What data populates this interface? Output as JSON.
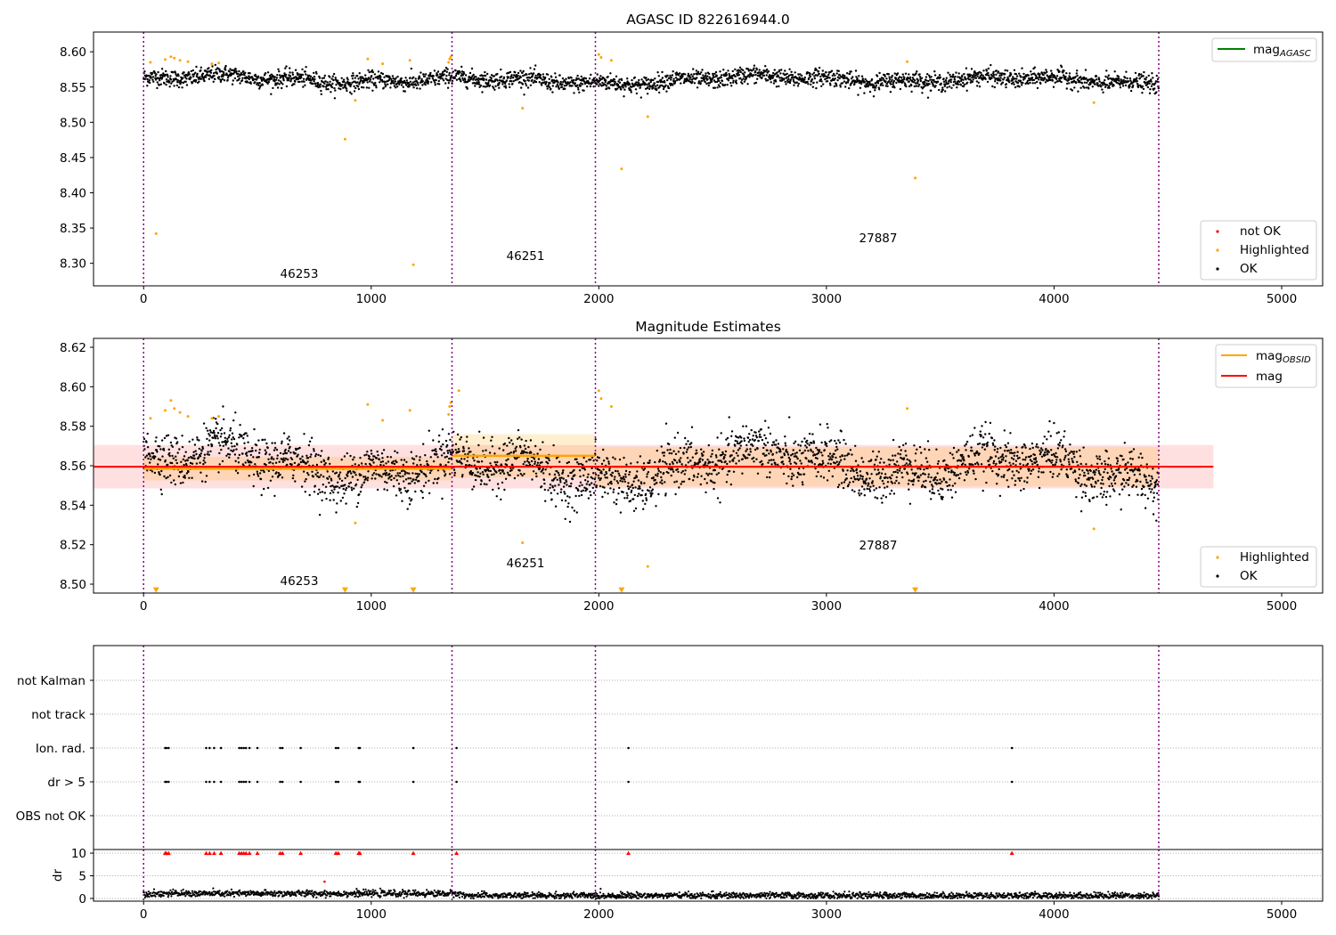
{
  "chart_data": [
    {
      "type": "scatter",
      "title": "AGASC ID 822616944.0",
      "xlim": [
        -220,
        5180
      ],
      "ylim": [
        8.268,
        8.628
      ],
      "x_ticks": [
        0,
        1000,
        2000,
        3000,
        4000,
        5000
      ],
      "y_ticks": [
        8.3,
        8.35,
        8.4,
        8.45,
        8.5,
        8.55,
        8.6
      ],
      "y_tick_labels": [
        "8.30",
        "8.35",
        "8.40",
        "8.45",
        "8.50",
        "8.55",
        "8.60"
      ],
      "obs_boundaries": [
        0,
        1355,
        1985,
        4460
      ],
      "obs_labels": [
        {
          "text": "46253",
          "x": 675,
          "y": 8.283
        },
        {
          "text": "46251",
          "x": 1670,
          "y": 8.309
        },
        {
          "text": "27887",
          "x": 3225,
          "y": 8.334
        }
      ],
      "series": [
        {
          "name": "OK",
          "color": "#000000",
          "band_mean": 8.56,
          "band_sd": 0.008,
          "x_range": [
            0,
            4460
          ]
        },
        {
          "name": "Highlighted",
          "color": "#ffa500",
          "values": [
            [
              55,
              8.342
            ],
            [
              885,
              8.476
            ],
            [
              930,
              8.531
            ],
            [
              1185,
              8.298
            ],
            [
              1665,
              8.52
            ],
            [
              2100,
              8.434
            ],
            [
              2215,
              8.508
            ],
            [
              3390,
              8.421
            ],
            [
              4175,
              8.528
            ],
            [
              30,
              8.585
            ],
            [
              95,
              8.589
            ],
            [
              120,
              8.593
            ],
            [
              135,
              8.591
            ],
            [
              160,
              8.588
            ],
            [
              195,
              8.586
            ],
            [
              300,
              8.583
            ],
            [
              330,
              8.584
            ],
            [
              985,
              8.59
            ],
            [
              1050,
              8.583
            ],
            [
              1170,
              8.588
            ],
            [
              1340,
              8.585
            ],
            [
              1345,
              8.59
            ],
            [
              1350,
              8.593
            ],
            [
              2000,
              8.596
            ],
            [
              2010,
              8.592
            ],
            [
              2055,
              8.588
            ],
            [
              3355,
              8.586
            ]
          ]
        },
        {
          "name": "not OK",
          "color": "#ff0000",
          "values": []
        }
      ],
      "line_series": [
        {
          "name": "mag_AGASC",
          "color": "#008000",
          "values": []
        }
      ],
      "legends": [
        {
          "position": "top-right",
          "entries": [
            {
              "label": "mag",
              "subscript": "AGASC",
              "kind": "line",
              "color": "#008000"
            }
          ]
        },
        {
          "position": "bottom-right",
          "entries": [
            {
              "label": "not OK",
              "kind": "dot",
              "color": "#ff0000"
            },
            {
              "label": "Highlighted",
              "kind": "dot",
              "color": "#ffa500"
            },
            {
              "label": "OK",
              "kind": "dot",
              "color": "#000000"
            }
          ]
        }
      ]
    },
    {
      "type": "scatter",
      "title": "Magnitude Estimates",
      "xlim": [
        -220,
        5180
      ],
      "ylim": [
        8.4955,
        8.6245
      ],
      "x_ticks": [
        0,
        1000,
        2000,
        3000,
        4000,
        5000
      ],
      "y_ticks": [
        8.5,
        8.52,
        8.54,
        8.56,
        8.58,
        8.6,
        8.62
      ],
      "y_tick_labels": [
        "8.50",
        "8.52",
        "8.54",
        "8.56",
        "8.58",
        "8.60",
        "8.62"
      ],
      "obs_boundaries": [
        0,
        1355,
        1985,
        4460
      ],
      "obs_labels": [
        {
          "text": "46253",
          "x": 675,
          "y": 8.4995
        },
        {
          "text": "46251",
          "x": 1670,
          "y": 8.5085
        },
        {
          "text": "27887",
          "x": 3225,
          "y": 8.5175
        }
      ],
      "mag": {
        "value": 8.5595,
        "sd": 0.011,
        "x_range": [
          -220,
          4700
        ],
        "color": "#ff0000"
      },
      "mag_obsid": [
        {
          "obsid": "46253",
          "value": 8.5585,
          "sd": 0.006,
          "x_range": [
            0,
            1355
          ]
        },
        {
          "obsid": "46251",
          "value": 8.565,
          "sd": 0.011,
          "x_range": [
            1355,
            1985
          ]
        },
        {
          "obsid": "27887",
          "value": 8.5595,
          "sd": 0.01,
          "x_range": [
            1985,
            4460
          ]
        }
      ],
      "series": [
        {
          "name": "OK",
          "color": "#000000",
          "band_mean": 8.5595,
          "band_sd": 0.0075,
          "x_range": [
            0,
            4460
          ]
        },
        {
          "name": "Highlighted",
          "color": "#ffa500",
          "values": [
            [
              30,
              8.584
            ],
            [
              95,
              8.588
            ],
            [
              120,
              8.593
            ],
            [
              135,
              8.589
            ],
            [
              160,
              8.587
            ],
            [
              195,
              8.585
            ],
            [
              300,
              8.584
            ],
            [
              330,
              8.585
            ],
            [
              985,
              8.591
            ],
            [
              930,
              8.531
            ],
            [
              1050,
              8.583
            ],
            [
              1170,
              8.588
            ],
            [
              1340,
              8.586
            ],
            [
              1345,
              8.59
            ],
            [
              1350,
              8.592
            ],
            [
              1385,
              8.598
            ],
            [
              1665,
              8.521
            ],
            [
              2000,
              8.598
            ],
            [
              2010,
              8.594
            ],
            [
              2055,
              8.59
            ],
            [
              2215,
              8.509
            ],
            [
              3355,
              8.589
            ],
            [
              4175,
              8.528
            ]
          ]
        },
        {
          "name": "Highlighted (below axis)",
          "color": "#ffa500",
          "marker": "triangle-down",
          "values": [
            [
              55,
              8.497
            ],
            [
              885,
              8.497
            ],
            [
              1185,
              8.497
            ],
            [
              2100,
              8.497
            ],
            [
              3390,
              8.497
            ]
          ]
        }
      ],
      "legends": [
        {
          "position": "top-right",
          "entries": [
            {
              "label": "mag",
              "subscript": "OBSID",
              "kind": "line",
              "color": "#ffa500"
            },
            {
              "label": "mag",
              "kind": "line",
              "color": "#ff0000"
            }
          ]
        },
        {
          "position": "bottom-right",
          "entries": [
            {
              "label": "Highlighted",
              "kind": "dot",
              "color": "#ffa500"
            },
            {
              "label": "OK",
              "kind": "dot",
              "color": "#000000"
            }
          ]
        }
      ]
    },
    {
      "type": "scatter",
      "title": "",
      "xlim": [
        -220,
        5180
      ],
      "x_ticks": [
        0,
        1000,
        2000,
        3000,
        4000,
        5000
      ],
      "categories": [
        "not Kalman",
        "not track",
        "Ion. rad.",
        "dr > 5",
        "OBS not OK"
      ],
      "flag_x": [
        95,
        100,
        110,
        275,
        290,
        310,
        340,
        420,
        430,
        440,
        450,
        465,
        500,
        600,
        610,
        690,
        845,
        855,
        945,
        950,
        1185,
        1375,
        2130,
        3815
      ],
      "series": [
        {
          "name": "Ion. rad.",
          "color": "#000000",
          "x_ref": "flag_x"
        },
        {
          "name": "dr > 5",
          "color": "#000000",
          "x_ref": "flag_x"
        }
      ],
      "obs_boundaries": [
        0,
        1355,
        1985,
        4460
      ]
    },
    {
      "type": "scatter",
      "title": "",
      "ylabel": "dr",
      "xlim": [
        -220,
        5180
      ],
      "ylim": [
        -0.6,
        10.8
      ],
      "x_ticks": [
        0,
        1000,
        2000,
        3000,
        4000,
        5000
      ],
      "y_ticks": [
        0,
        5,
        10
      ],
      "y_tick_labels": [
        "0",
        "5",
        "10"
      ],
      "series": [
        {
          "name": "dr",
          "color": "#000000",
          "band_mean": 0.9,
          "band_sd": 0.35,
          "x_range": [
            0,
            4460
          ]
        },
        {
          "name": "dr clipped",
          "color": "#ff0000",
          "marker": "triangle-up",
          "value": 10,
          "x_ref": "flag_x"
        },
        {
          "name": "dr outlier",
          "color": "#ff0000",
          "values": [
            [
              795,
              3.7
            ]
          ]
        }
      ],
      "obs_boundaries": [
        0,
        1355,
        1985,
        4460
      ]
    }
  ]
}
